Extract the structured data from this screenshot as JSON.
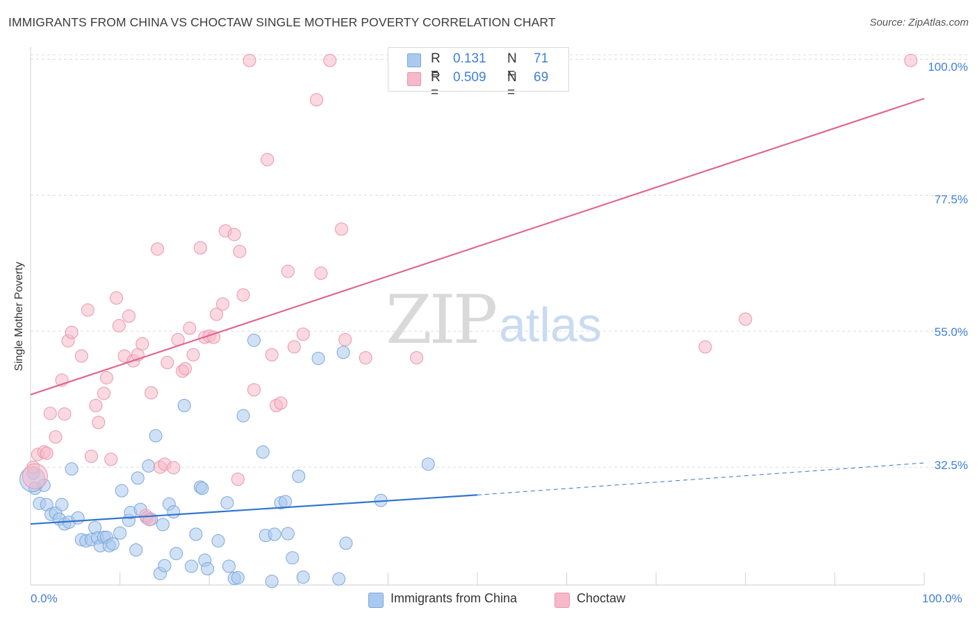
{
  "header": {
    "title": "IMMIGRANTS FROM CHINA VS CHOCTAW SINGLE MOTHER POVERTY CORRELATION CHART",
    "source": "Source: ZipAtlas.com"
  },
  "watermark": {
    "zip": "ZIP",
    "atlas": "atlas"
  },
  "legend": {
    "rows": [
      {
        "r_label": "R =",
        "r_value": "0.131",
        "n_label": "N =",
        "n_value": "71"
      },
      {
        "r_label": "R =",
        "r_value": "0.509",
        "n_label": "N =",
        "n_value": "69"
      }
    ]
  },
  "colors": {
    "china_fill": "#a9c9ef",
    "china_stroke": "#7aa6dc",
    "china_line": "#2f74d0",
    "choctaw_fill": "#f5b9c9",
    "choctaw_stroke": "#ec93ad",
    "choctaw_line": "#e06690",
    "grid": "#dcdcdc",
    "tick_label": "#3d7fd9"
  },
  "chart_data": {
    "type": "scatter",
    "title": "IMMIGRANTS FROM CHINA VS CHOCTAW SINGLE MOTHER POVERTY CORRELATION CHART",
    "xlabel": "",
    "ylabel": "Single Mother Poverty",
    "xlim": [
      0,
      100
    ],
    "ylim": [
      13,
      102
    ],
    "x_tick_labels": [
      "0.0%",
      "100.0%"
    ],
    "y_ticks": [
      32.5,
      55.0,
      77.5,
      100.0
    ],
    "y_tick_labels": [
      "32.5%",
      "55.0%",
      "77.5%",
      "100.0%"
    ],
    "grid": true,
    "legend_position": "top-center",
    "bottom_legend": [
      "Immigrants from China",
      "Choctaw"
    ],
    "series": [
      {
        "name": "Immigrants from China",
        "color": "#a9c9ef",
        "trend": {
          "x_start": 0,
          "y_start": 23.1,
          "x_solid_end": 50,
          "y_solid_end": 27.9,
          "x_end": 100,
          "y_end": 33.2
        },
        "points": [
          [
            0.3,
            31.5
          ],
          [
            0.5,
            29.0
          ],
          [
            1.0,
            26.5
          ],
          [
            1.5,
            29.5
          ],
          [
            1.8,
            26.3
          ],
          [
            2.3,
            24.7
          ],
          [
            2.8,
            24.9
          ],
          [
            3.2,
            23.9
          ],
          [
            3.5,
            26.3
          ],
          [
            3.8,
            23.1
          ],
          [
            4.3,
            23.4
          ],
          [
            4.6,
            32.2
          ],
          [
            5.3,
            24.1
          ],
          [
            5.7,
            20.5
          ],
          [
            6.2,
            20.3
          ],
          [
            6.8,
            20.5
          ],
          [
            7.2,
            22.5
          ],
          [
            7.5,
            20.8
          ],
          [
            7.8,
            19.5
          ],
          [
            8.2,
            20.9
          ],
          [
            8.5,
            20.9
          ],
          [
            8.8,
            19.5
          ],
          [
            9.2,
            19.8
          ],
          [
            10.0,
            21.6
          ],
          [
            10.2,
            28.6
          ],
          [
            11.0,
            23.7
          ],
          [
            11.2,
            25.0
          ],
          [
            11.8,
            18.8
          ],
          [
            12.0,
            30.7
          ],
          [
            12.3,
            25.5
          ],
          [
            13.0,
            24.1
          ],
          [
            13.2,
            32.7
          ],
          [
            13.5,
            23.9
          ],
          [
            14.0,
            37.7
          ],
          [
            14.5,
            14.9
          ],
          [
            14.8,
            23.0
          ],
          [
            15.0,
            16.2
          ],
          [
            15.5,
            26.4
          ],
          [
            16.0,
            25.1
          ],
          [
            16.3,
            18.2
          ],
          [
            17.2,
            42.7
          ],
          [
            18.0,
            16.1
          ],
          [
            18.5,
            21.4
          ],
          [
            19.0,
            29.2
          ],
          [
            19.2,
            29.0
          ],
          [
            19.5,
            17.1
          ],
          [
            19.8,
            15.7
          ],
          [
            21.0,
            20.3
          ],
          [
            22.0,
            26.6
          ],
          [
            22.2,
            16.1
          ],
          [
            22.8,
            14.1
          ],
          [
            23.2,
            14.2
          ],
          [
            23.8,
            41.0
          ],
          [
            25.0,
            53.5
          ],
          [
            26.0,
            35.0
          ],
          [
            26.3,
            21.2
          ],
          [
            27.0,
            13.6
          ],
          [
            27.3,
            21.4
          ],
          [
            28.0,
            26.6
          ],
          [
            28.5,
            26.8
          ],
          [
            28.8,
            21.5
          ],
          [
            29.3,
            17.5
          ],
          [
            30.0,
            31.0
          ],
          [
            30.5,
            14.3
          ],
          [
            32.2,
            50.5
          ],
          [
            34.5,
            14.0
          ],
          [
            35.0,
            51.5
          ],
          [
            35.3,
            19.9
          ],
          [
            39.2,
            27.0
          ],
          [
            44.5,
            33.0
          ],
          [
            0.2,
            30.5
          ]
        ]
      },
      {
        "name": "Choctaw",
        "color": "#f5b9c9",
        "trend": {
          "x_start": 0,
          "y_start": 44.5,
          "x_end": 100,
          "y_end": 93.5
        },
        "points": [
          [
            0.3,
            32.5
          ],
          [
            0.8,
            34.6
          ],
          [
            1.5,
            35.0
          ],
          [
            1.8,
            34.8
          ],
          [
            2.2,
            41.4
          ],
          [
            2.8,
            37.5
          ],
          [
            3.5,
            46.9
          ],
          [
            3.8,
            41.3
          ],
          [
            4.2,
            53.4
          ],
          [
            4.6,
            54.8
          ],
          [
            5.7,
            50.9
          ],
          [
            6.4,
            58.5
          ],
          [
            6.8,
            34.3
          ],
          [
            7.3,
            42.7
          ],
          [
            7.6,
            39.9
          ],
          [
            8.2,
            44.7
          ],
          [
            8.5,
            47.3
          ],
          [
            9.0,
            33.8
          ],
          [
            9.6,
            60.5
          ],
          [
            9.9,
            55.9
          ],
          [
            10.5,
            50.9
          ],
          [
            11.0,
            57.5
          ],
          [
            11.5,
            50.1
          ],
          [
            12.0,
            51.1
          ],
          [
            12.5,
            52.9
          ],
          [
            12.9,
            24.5
          ],
          [
            13.3,
            23.8
          ],
          [
            13.5,
            44.8
          ],
          [
            14.2,
            68.6
          ],
          [
            14.5,
            32.5
          ],
          [
            15.0,
            33.0
          ],
          [
            15.3,
            49.8
          ],
          [
            16.0,
            32.4
          ],
          [
            16.5,
            53.6
          ],
          [
            17.0,
            48.4
          ],
          [
            17.3,
            48.8
          ],
          [
            17.8,
            55.5
          ],
          [
            18.2,
            51.1
          ],
          [
            19.0,
            68.8
          ],
          [
            19.5,
            54.0
          ],
          [
            20.0,
            54.2
          ],
          [
            20.5,
            54.0
          ],
          [
            20.8,
            57.8
          ],
          [
            21.5,
            59.5
          ],
          [
            21.8,
            71.6
          ],
          [
            22.8,
            71.0
          ],
          [
            23.2,
            30.5
          ],
          [
            23.4,
            68.2
          ],
          [
            23.8,
            61.0
          ],
          [
            24.5,
            99.8
          ],
          [
            25.0,
            45.3
          ],
          [
            26.5,
            83.4
          ],
          [
            27.0,
            51.1
          ],
          [
            27.5,
            42.7
          ],
          [
            28.0,
            43.1
          ],
          [
            28.8,
            64.9
          ],
          [
            29.5,
            52.4
          ],
          [
            30.5,
            54.5
          ],
          [
            32.0,
            93.3
          ],
          [
            32.5,
            64.6
          ],
          [
            33.5,
            99.8
          ],
          [
            34.8,
            71.9
          ],
          [
            35.2,
            53.6
          ],
          [
            37.5,
            50.6
          ],
          [
            43.2,
            50.6
          ],
          [
            75.5,
            52.4
          ],
          [
            80.0,
            57.0
          ],
          [
            98.5,
            99.8
          ],
          [
            0.5,
            31.0
          ]
        ]
      }
    ]
  }
}
